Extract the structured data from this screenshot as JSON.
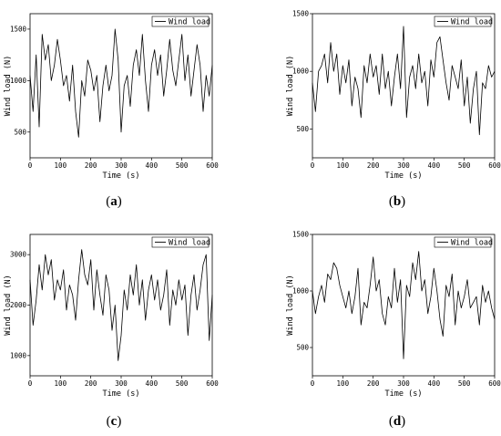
{
  "chart_data": [
    {
      "type": "line",
      "caption": {
        "open": "(",
        "letter": "a",
        "close": ")"
      },
      "xlabel": "Time (s)",
      "ylabel": "Wind load (N)",
      "xlim": [
        0,
        600
      ],
      "ylim": [
        250,
        1650
      ],
      "xticks": [
        0,
        100,
        200,
        300,
        400,
        500,
        600
      ],
      "yticks": [
        500,
        1000,
        1500
      ],
      "legend": "top-right",
      "series": [
        {
          "name": "Wind load",
          "x": [
            0,
            10,
            20,
            30,
            40,
            50,
            60,
            70,
            80,
            90,
            100,
            110,
            120,
            130,
            140,
            150,
            160,
            170,
            180,
            190,
            200,
            210,
            220,
            230,
            240,
            250,
            260,
            270,
            280,
            290,
            300,
            310,
            320,
            330,
            340,
            350,
            360,
            370,
            380,
            390,
            400,
            410,
            420,
            430,
            440,
            450,
            460,
            470,
            480,
            490,
            500,
            510,
            520,
            530,
            540,
            550,
            560,
            570,
            580,
            590,
            600
          ],
          "y": [
            1050,
            700,
            1250,
            550,
            1450,
            1200,
            1350,
            1000,
            1150,
            1400,
            1200,
            950,
            1050,
            800,
            1150,
            700,
            450,
            1000,
            850,
            1200,
            1100,
            900,
            1050,
            600,
            950,
            1150,
            900,
            1050,
            1500,
            1200,
            500,
            950,
            1050,
            750,
            1150,
            1300,
            1050,
            1450,
            1000,
            700,
            1150,
            1300,
            1050,
            1250,
            850,
            1100,
            1400,
            1100,
            950,
            1200,
            1450,
            1000,
            1250,
            850,
            1100,
            1350,
            1150,
            700,
            1050,
            850,
            1150
          ]
        }
      ]
    },
    {
      "type": "line",
      "caption": {
        "open": "(",
        "letter": "b",
        "close": ")"
      },
      "xlabel": "Time (s)",
      "ylabel": "Wind load (N)",
      "xlim": [
        0,
        600
      ],
      "ylim": [
        250,
        1500
      ],
      "xticks": [
        0,
        100,
        200,
        300,
        400,
        500,
        600
      ],
      "yticks": [
        500,
        1000,
        1500
      ],
      "legend": "top-right",
      "series": [
        {
          "name": "Wind load",
          "x": [
            0,
            10,
            20,
            30,
            40,
            50,
            60,
            70,
            80,
            90,
            100,
            110,
            120,
            130,
            140,
            150,
            160,
            170,
            180,
            190,
            200,
            210,
            220,
            230,
            240,
            250,
            260,
            270,
            280,
            290,
            300,
            310,
            320,
            330,
            340,
            350,
            360,
            370,
            380,
            390,
            400,
            410,
            420,
            430,
            440,
            450,
            460,
            470,
            480,
            490,
            500,
            510,
            520,
            530,
            540,
            550,
            560,
            570,
            580,
            590,
            600
          ],
          "y": [
            900,
            650,
            1000,
            1050,
            1150,
            900,
            1250,
            1000,
            1150,
            800,
            1050,
            900,
            1100,
            700,
            950,
            850,
            600,
            1050,
            900,
            1150,
            950,
            1050,
            800,
            1150,
            850,
            1000,
            700,
            950,
            1150,
            850,
            1390,
            600,
            950,
            1050,
            850,
            1150,
            900,
            1000,
            700,
            1100,
            950,
            1250,
            1300,
            1100,
            900,
            750,
            1050,
            950,
            850,
            1100,
            700,
            950,
            550,
            850,
            1000,
            450,
            900,
            850,
            1050,
            950,
            1000
          ]
        }
      ]
    },
    {
      "type": "line",
      "caption": {
        "open": "(",
        "letter": "c",
        "close": ")"
      },
      "xlabel": "Time (s)",
      "ylabel": "Wind load (N)",
      "xlim": [
        0,
        600
      ],
      "ylim": [
        600,
        3400
      ],
      "xticks": [
        0,
        100,
        200,
        300,
        400,
        500,
        600
      ],
      "yticks": [
        1000,
        2000,
        3000
      ],
      "legend": "top-right",
      "series": [
        {
          "name": "Wind load",
          "x": [
            0,
            10,
            20,
            30,
            40,
            50,
            60,
            70,
            80,
            90,
            100,
            110,
            120,
            130,
            140,
            150,
            160,
            170,
            180,
            190,
            200,
            210,
            220,
            230,
            240,
            250,
            260,
            270,
            280,
            290,
            300,
            310,
            320,
            330,
            340,
            350,
            360,
            370,
            380,
            390,
            400,
            410,
            420,
            430,
            440,
            450,
            460,
            470,
            480,
            490,
            500,
            510,
            520,
            530,
            540,
            550,
            560,
            570,
            580,
            590,
            600
          ],
          "y": [
            2500,
            1600,
            2100,
            2800,
            2300,
            3000,
            2600,
            2900,
            2100,
            2500,
            2300,
            2700,
            1900,
            2400,
            2200,
            1700,
            2500,
            3100,
            2600,
            2400,
            2900,
            1900,
            2700,
            2200,
            1800,
            2600,
            2300,
            1500,
            2000,
            900,
            1400,
            2300,
            1900,
            2600,
            2200,
            2800,
            2000,
            2500,
            1700,
            2300,
            2600,
            2100,
            2500,
            1900,
            2200,
            2700,
            1600,
            2300,
            2000,
            2500,
            2100,
            2400,
            1400,
            2200,
            2600,
            1900,
            2300,
            2800,
            3000,
            1300,
            2200
          ]
        }
      ]
    },
    {
      "type": "line",
      "caption": {
        "open": "(",
        "letter": "d",
        "close": ")"
      },
      "xlabel": "Time (s)",
      "ylabel": "Wind load (N)",
      "xlim": [
        0,
        600
      ],
      "ylim": [
        250,
        1500
      ],
      "xticks": [
        0,
        100,
        200,
        300,
        400,
        500,
        600
      ],
      "yticks": [
        500,
        1000,
        1500
      ],
      "legend": "top-right",
      "series": [
        {
          "name": "Wind load",
          "x": [
            0,
            10,
            20,
            30,
            40,
            50,
            60,
            70,
            80,
            90,
            100,
            110,
            120,
            130,
            140,
            150,
            160,
            170,
            180,
            190,
            200,
            210,
            220,
            230,
            240,
            250,
            260,
            270,
            280,
            290,
            300,
            310,
            320,
            330,
            340,
            350,
            360,
            370,
            380,
            390,
            400,
            410,
            420,
            430,
            440,
            450,
            460,
            470,
            480,
            490,
            500,
            510,
            520,
            530,
            540,
            550,
            560,
            570,
            580,
            590,
            600
          ],
          "y": [
            1000,
            800,
            950,
            1050,
            900,
            1150,
            1100,
            1250,
            1200,
            1050,
            950,
            850,
            1000,
            800,
            950,
            1200,
            700,
            900,
            850,
            1050,
            1300,
            1000,
            1100,
            800,
            700,
            950,
            850,
            1200,
            900,
            1100,
            400,
            1050,
            950,
            1250,
            1100,
            1350,
            1000,
            1100,
            800,
            950,
            1200,
            1000,
            750,
            600,
            1050,
            950,
            1150,
            700,
            1000,
            850,
            950,
            1100,
            850,
            900,
            950,
            700,
            1050,
            900,
            1000,
            850,
            750
          ]
        }
      ]
    }
  ]
}
